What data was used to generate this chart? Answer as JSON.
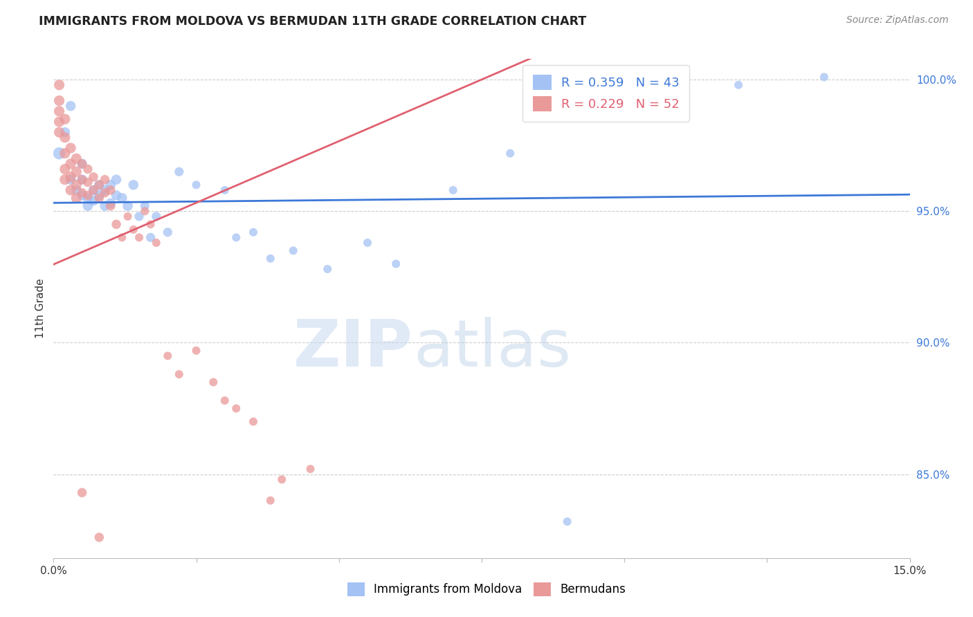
{
  "title": "IMMIGRANTS FROM MOLDOVA VS BERMUDAN 11TH GRADE CORRELATION CHART",
  "source": "Source: ZipAtlas.com",
  "ylabel_label": "11th Grade",
  "xmin": 0.0,
  "xmax": 0.15,
  "ymin": 0.818,
  "ymax": 1.008,
  "yticks": [
    0.85,
    0.9,
    0.95,
    1.0
  ],
  "ytick_labels": [
    "85.0%",
    "90.0%",
    "95.0%",
    "100.0%"
  ],
  "xticks": [
    0.0,
    0.025,
    0.05,
    0.075,
    0.1,
    0.125,
    0.15
  ],
  "xtick_labels": [
    "0.0%",
    "",
    "",
    "",
    "",
    "",
    "15.0%"
  ],
  "legend_blue_r": "R = 0.359",
  "legend_blue_n": "N = 43",
  "legend_pink_r": "R = 0.229",
  "legend_pink_n": "N = 52",
  "blue_color": "#a4c2f4",
  "pink_color": "#ea9999",
  "blue_line_color": "#3c78d8",
  "pink_line_color": "#e06070",
  "watermark_zip": "ZIP",
  "watermark_atlas": "atlas",
  "blue_scatter": [
    [
      0.001,
      0.972
    ],
    [
      0.002,
      0.98
    ],
    [
      0.003,
      0.99
    ],
    [
      0.003,
      0.962
    ],
    [
      0.004,
      0.958
    ],
    [
      0.005,
      0.962
    ],
    [
      0.005,
      0.956
    ],
    [
      0.005,
      0.968
    ],
    [
      0.006,
      0.955
    ],
    [
      0.006,
      0.952
    ],
    [
      0.007,
      0.958
    ],
    [
      0.007,
      0.954
    ],
    [
      0.008,
      0.956
    ],
    [
      0.008,
      0.96
    ],
    [
      0.009,
      0.958
    ],
    [
      0.009,
      0.952
    ],
    [
      0.01,
      0.953
    ],
    [
      0.01,
      0.96
    ],
    [
      0.011,
      0.962
    ],
    [
      0.011,
      0.956
    ],
    [
      0.012,
      0.955
    ],
    [
      0.013,
      0.952
    ],
    [
      0.014,
      0.96
    ],
    [
      0.015,
      0.948
    ],
    [
      0.016,
      0.952
    ],
    [
      0.017,
      0.94
    ],
    [
      0.018,
      0.948
    ],
    [
      0.02,
      0.942
    ],
    [
      0.022,
      0.965
    ],
    [
      0.025,
      0.96
    ],
    [
      0.03,
      0.958
    ],
    [
      0.032,
      0.94
    ],
    [
      0.035,
      0.942
    ],
    [
      0.038,
      0.932
    ],
    [
      0.042,
      0.935
    ],
    [
      0.048,
      0.928
    ],
    [
      0.055,
      0.938
    ],
    [
      0.06,
      0.93
    ],
    [
      0.07,
      0.958
    ],
    [
      0.08,
      0.972
    ],
    [
      0.09,
      0.832
    ],
    [
      0.12,
      0.998
    ],
    [
      0.135,
      1.001
    ]
  ],
  "pink_scatter": [
    [
      0.001,
      0.998
    ],
    [
      0.001,
      0.992
    ],
    [
      0.001,
      0.988
    ],
    [
      0.001,
      0.984
    ],
    [
      0.001,
      0.98
    ],
    [
      0.002,
      0.985
    ],
    [
      0.002,
      0.978
    ],
    [
      0.002,
      0.972
    ],
    [
      0.002,
      0.966
    ],
    [
      0.002,
      0.962
    ],
    [
      0.003,
      0.974
    ],
    [
      0.003,
      0.968
    ],
    [
      0.003,
      0.963
    ],
    [
      0.003,
      0.958
    ],
    [
      0.004,
      0.97
    ],
    [
      0.004,
      0.965
    ],
    [
      0.004,
      0.96
    ],
    [
      0.004,
      0.955
    ],
    [
      0.005,
      0.968
    ],
    [
      0.005,
      0.962
    ],
    [
      0.005,
      0.957
    ],
    [
      0.006,
      0.966
    ],
    [
      0.006,
      0.961
    ],
    [
      0.006,
      0.956
    ],
    [
      0.007,
      0.963
    ],
    [
      0.007,
      0.958
    ],
    [
      0.008,
      0.96
    ],
    [
      0.008,
      0.955
    ],
    [
      0.009,
      0.962
    ],
    [
      0.009,
      0.957
    ],
    [
      0.01,
      0.958
    ],
    [
      0.01,
      0.952
    ],
    [
      0.011,
      0.945
    ],
    [
      0.012,
      0.94
    ],
    [
      0.013,
      0.948
    ],
    [
      0.014,
      0.943
    ],
    [
      0.015,
      0.94
    ],
    [
      0.016,
      0.95
    ],
    [
      0.017,
      0.945
    ],
    [
      0.018,
      0.938
    ],
    [
      0.02,
      0.895
    ],
    [
      0.022,
      0.888
    ],
    [
      0.025,
      0.897
    ],
    [
      0.028,
      0.885
    ],
    [
      0.03,
      0.878
    ],
    [
      0.032,
      0.875
    ],
    [
      0.035,
      0.87
    ],
    [
      0.038,
      0.84
    ],
    [
      0.04,
      0.848
    ],
    [
      0.045,
      0.852
    ],
    [
      0.005,
      0.843
    ],
    [
      0.008,
      0.826
    ]
  ],
  "blue_sizes_scale": 80,
  "pink_sizes_scale": 80
}
